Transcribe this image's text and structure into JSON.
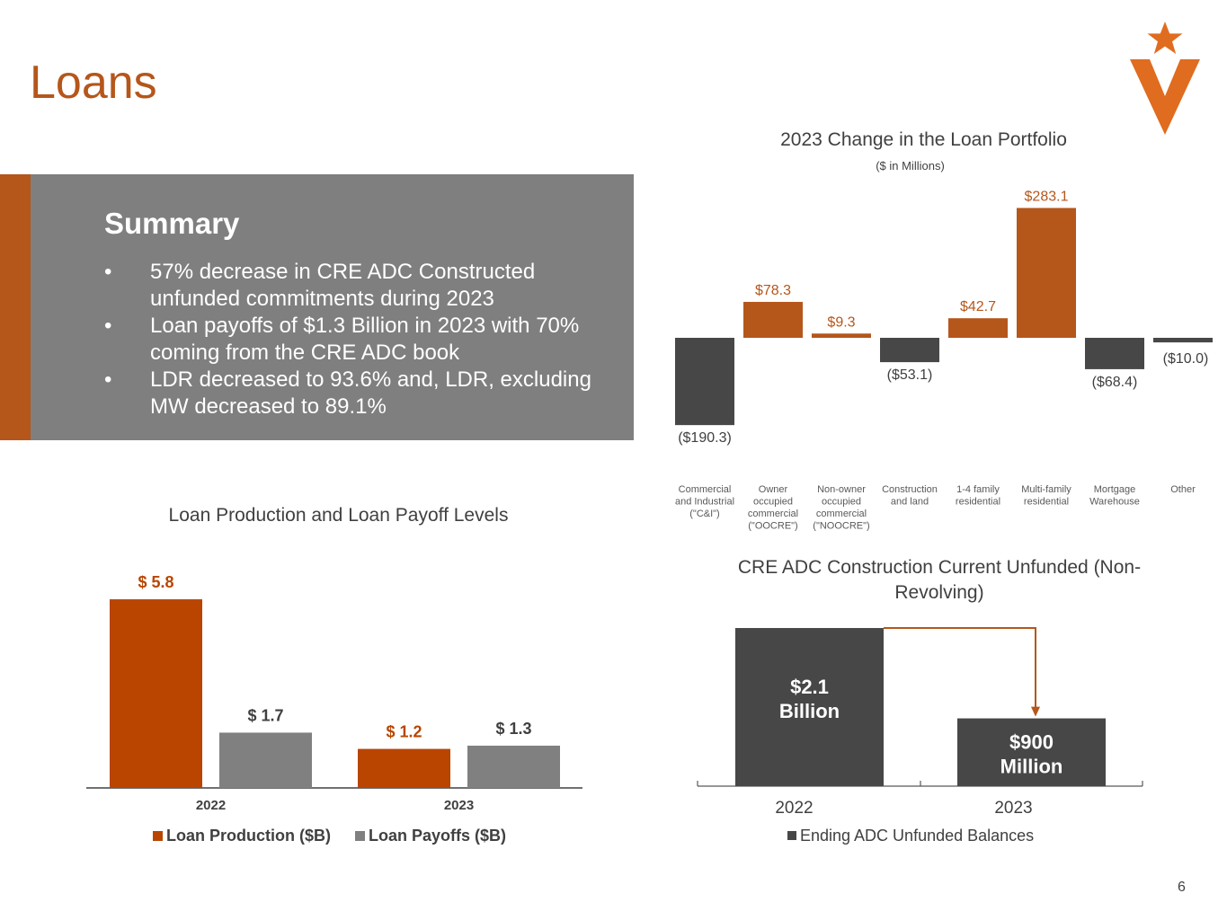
{
  "page": {
    "title": "Loans",
    "page_number": "6"
  },
  "summary": {
    "heading": "Summary",
    "bullet_char": "•",
    "items": [
      "57% decrease in CRE ADC Constructed unfunded commitments during 2023",
      "Loan payoffs of $1.3 Billion in 2023 with 70% coming from the CRE ADC book",
      "LDR decreased to 93.6% and, LDR, excluding MW decreased to 89.1%"
    ]
  },
  "colors": {
    "orange": "#b5561b",
    "dark_orange": "#b94500",
    "dark_gray": "#474747",
    "gray": "#808080",
    "axis": "#404040"
  },
  "chart_data": [
    {
      "id": "waterfall",
      "type": "bar",
      "title": "2023 Change in the Loan Portfolio",
      "subtitle": "($ in Millions)",
      "categories": [
        [
          "Commercial",
          "and Industrial",
          "(\"C&I\")"
        ],
        [
          "Owner",
          "occupied",
          "commercial",
          "(\"OOCRE\")"
        ],
        [
          "Non-owner",
          "occupied",
          "commercial",
          "(\"NOOCRE\")"
        ],
        [
          "Construction",
          "and land"
        ],
        [
          "1-4 family",
          "residential"
        ],
        [
          "Multi-family",
          "residential"
        ],
        [
          "Mortgage",
          "Warehouse"
        ],
        [
          "Other"
        ]
      ],
      "values": [
        -190.3,
        78.3,
        9.3,
        -53.1,
        42.7,
        283.1,
        -68.4,
        -10.0
      ],
      "data_labels": [
        "($190.3)",
        "$78.3",
        "$9.3",
        "($53.1)",
        "$42.7",
        "$283.1",
        "($68.4)",
        "($10.0)"
      ],
      "positive_color": "#b5561b",
      "negative_color": "#474747",
      "ylim": [
        -190.3,
        283.1
      ]
    },
    {
      "id": "production",
      "type": "bar",
      "title": "Loan Production and Loan Payoff Levels",
      "categories": [
        "2022",
        "2023"
      ],
      "series": [
        {
          "name": "Loan Production ($B)",
          "values": [
            5.8,
            1.2
          ],
          "labels": [
            "$ 5.8",
            "$ 1.2"
          ],
          "color": "#b94500"
        },
        {
          "name": "Loan Payoffs ($B)",
          "values": [
            1.7,
            1.3
          ],
          "labels": [
            "$ 1.7",
            "$ 1.3"
          ],
          "color": "#808080"
        }
      ],
      "ylim": [
        0,
        5.8
      ],
      "legend": "bottom"
    },
    {
      "id": "adc",
      "type": "bar",
      "title": "CRE ADC Construction Current Unfunded (Non-Revolving)",
      "categories": [
        "2022",
        "2023"
      ],
      "values": [
        2.1,
        0.9
      ],
      "value_labels": [
        [
          "$2.1",
          "Billion"
        ],
        [
          "$900",
          "Million"
        ]
      ],
      "series_name": "Ending ADC Unfunded Balances",
      "color": "#474747",
      "arrow_color": "#b5561b",
      "unit": "$ Billion",
      "legend": "bottom"
    }
  ]
}
